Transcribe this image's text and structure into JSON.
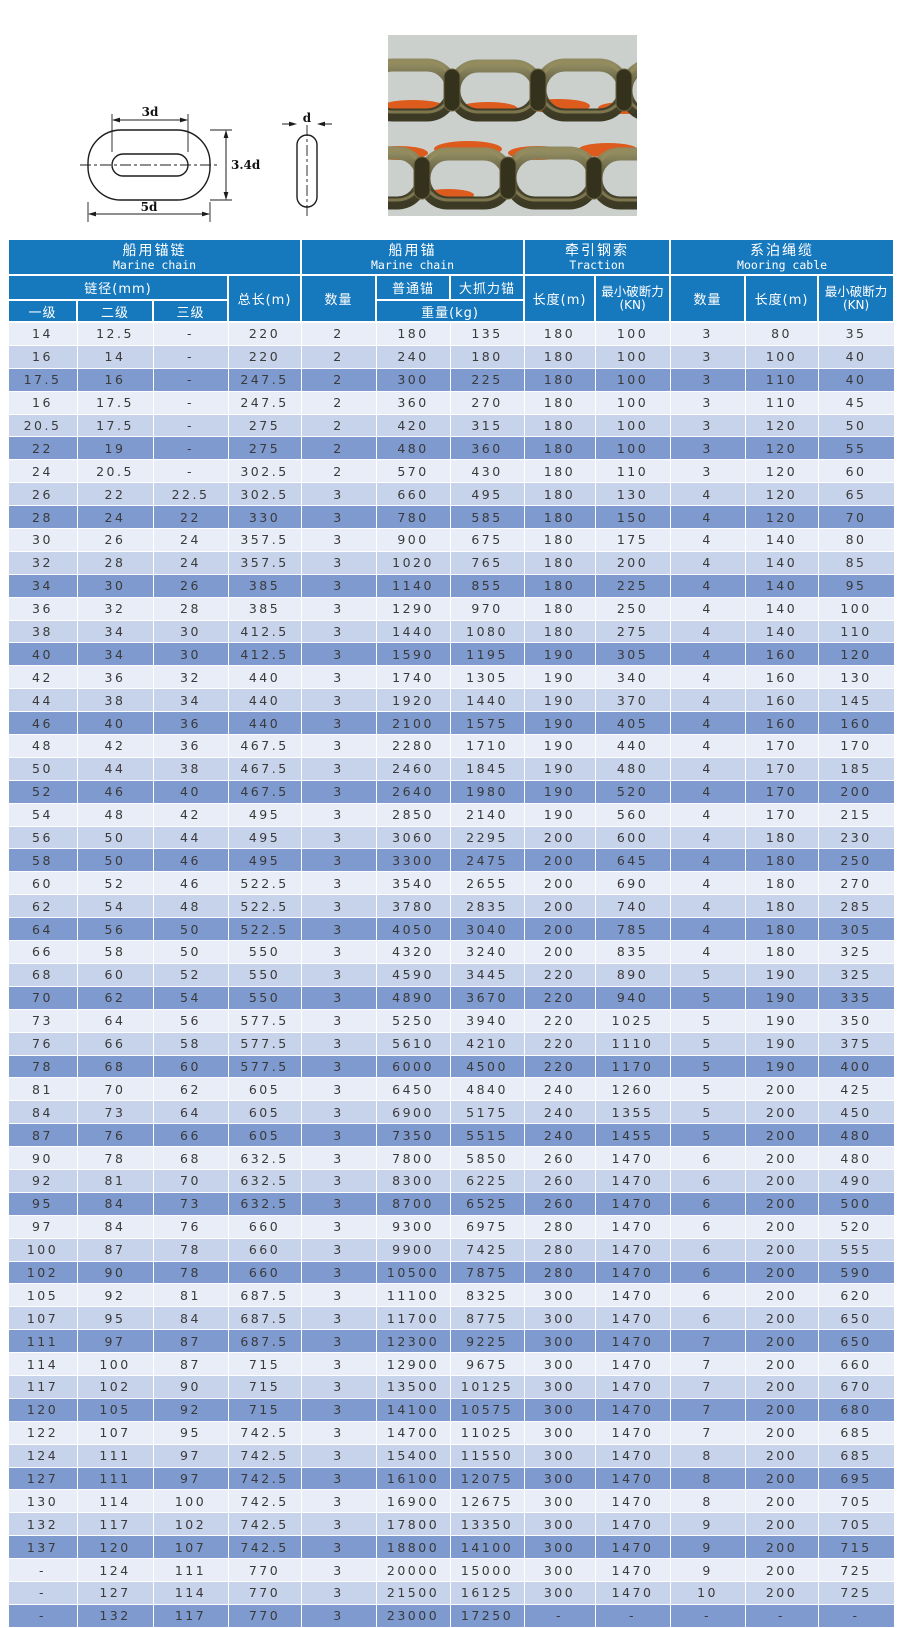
{
  "colors": {
    "header_blue": "#1678BD",
    "row_light": "#E9EDF7",
    "row_medium": "#C7D3EA",
    "row_dark": "#7E9ACF",
    "grid_white": "#FFFFFF",
    "body_text": "#3A3A3A",
    "photo_bg": "#CBD0CD",
    "photo_orange": "#DD5B1C",
    "photo_metal_light": "#978D5E",
    "photo_metal_dark": "#3C3A24"
  },
  "diagram": {
    "top_width": "3d",
    "height": "3.4d",
    "bottom_width": "5d",
    "bar_diameter": "d"
  },
  "table": {
    "groups": [
      {
        "zh": "船用锚链",
        "en": "Marine chain"
      },
      {
        "zh": "船用锚",
        "en": "Marine chain"
      },
      {
        "zh": "牵引钢索",
        "en": "Traction"
      },
      {
        "zh": "系泊绳缆",
        "en": "Mooring cable"
      }
    ],
    "header": {
      "chain_diameter": "链径(mm)",
      "grade1": "一级",
      "grade2": "二级",
      "grade3": "三级",
      "total_length": "总长(m)",
      "anchor_qty": "数量",
      "ordinary_anchor": "普通锚",
      "high_holding_anchor": "大抓力锚",
      "weight": "重量(kg)",
      "traction_length": "长度(m)",
      "traction_break": "最小破断力",
      "traction_break_unit": "(KN)",
      "mooring_qty": "数量",
      "mooring_length": "长度(m)",
      "mooring_break": "最小破断力",
      "mooring_break_unit": "(KN)"
    },
    "rows": [
      [
        "14",
        "12.5",
        "-",
        "220",
        "2",
        "180",
        "135",
        "180",
        "100",
        "3",
        "80",
        "35"
      ],
      [
        "16",
        "14",
        "-",
        "220",
        "2",
        "240",
        "180",
        "180",
        "100",
        "3",
        "100",
        "40"
      ],
      [
        "17.5",
        "16",
        "-",
        "247.5",
        "2",
        "300",
        "225",
        "180",
        "100",
        "3",
        "110",
        "40"
      ],
      [
        "16",
        "17.5",
        "-",
        "247.5",
        "2",
        "360",
        "270",
        "180",
        "100",
        "3",
        "110",
        "45"
      ],
      [
        "20.5",
        "17.5",
        "-",
        "275",
        "2",
        "420",
        "315",
        "180",
        "100",
        "3",
        "120",
        "50"
      ],
      [
        "22",
        "19",
        "-",
        "275",
        "2",
        "480",
        "360",
        "180",
        "100",
        "3",
        "120",
        "55"
      ],
      [
        "24",
        "20.5",
        "-",
        "302.5",
        "2",
        "570",
        "430",
        "180",
        "110",
        "3",
        "120",
        "60"
      ],
      [
        "26",
        "22",
        "22.5",
        "302.5",
        "3",
        "660",
        "495",
        "180",
        "130",
        "4",
        "120",
        "65"
      ],
      [
        "28",
        "24",
        "22",
        "330",
        "3",
        "780",
        "585",
        "180",
        "150",
        "4",
        "120",
        "70"
      ],
      [
        "30",
        "26",
        "24",
        "357.5",
        "3",
        "900",
        "675",
        "180",
        "175",
        "4",
        "140",
        "80"
      ],
      [
        "32",
        "28",
        "24",
        "357.5",
        "3",
        "1020",
        "765",
        "180",
        "200",
        "4",
        "140",
        "85"
      ],
      [
        "34",
        "30",
        "26",
        "385",
        "3",
        "1140",
        "855",
        "180",
        "225",
        "4",
        "140",
        "95"
      ],
      [
        "36",
        "32",
        "28",
        "385",
        "3",
        "1290",
        "970",
        "180",
        "250",
        "4",
        "140",
        "100"
      ],
      [
        "38",
        "34",
        "30",
        "412.5",
        "3",
        "1440",
        "1080",
        "180",
        "275",
        "4",
        "140",
        "110"
      ],
      [
        "40",
        "34",
        "30",
        "412.5",
        "3",
        "1590",
        "1195",
        "190",
        "305",
        "4",
        "160",
        "120"
      ],
      [
        "42",
        "36",
        "32",
        "440",
        "3",
        "1740",
        "1305",
        "190",
        "340",
        "4",
        "160",
        "130"
      ],
      [
        "44",
        "38",
        "34",
        "440",
        "3",
        "1920",
        "1440",
        "190",
        "370",
        "4",
        "160",
        "145"
      ],
      [
        "46",
        "40",
        "36",
        "440",
        "3",
        "2100",
        "1575",
        "190",
        "405",
        "4",
        "160",
        "160"
      ],
      [
        "48",
        "42",
        "36",
        "467.5",
        "3",
        "2280",
        "1710",
        "190",
        "440",
        "4",
        "170",
        "170"
      ],
      [
        "50",
        "44",
        "38",
        "467.5",
        "3",
        "2460",
        "1845",
        "190",
        "480",
        "4",
        "170",
        "185"
      ],
      [
        "52",
        "46",
        "40",
        "467.5",
        "3",
        "2640",
        "1980",
        "190",
        "520",
        "4",
        "170",
        "200"
      ],
      [
        "54",
        "48",
        "42",
        "495",
        "3",
        "2850",
        "2140",
        "190",
        "560",
        "4",
        "170",
        "215"
      ],
      [
        "56",
        "50",
        "44",
        "495",
        "3",
        "3060",
        "2295",
        "200",
        "600",
        "4",
        "180",
        "230"
      ],
      [
        "58",
        "50",
        "46",
        "495",
        "3",
        "3300",
        "2475",
        "200",
        "645",
        "4",
        "180",
        "250"
      ],
      [
        "60",
        "52",
        "46",
        "522.5",
        "3",
        "3540",
        "2655",
        "200",
        "690",
        "4",
        "180",
        "270"
      ],
      [
        "62",
        "54",
        "48",
        "522.5",
        "3",
        "3780",
        "2835",
        "200",
        "740",
        "4",
        "180",
        "285"
      ],
      [
        "64",
        "56",
        "50",
        "522.5",
        "3",
        "4050",
        "3040",
        "200",
        "785",
        "4",
        "180",
        "305"
      ],
      [
        "66",
        "58",
        "50",
        "550",
        "3",
        "4320",
        "3240",
        "200",
        "835",
        "4",
        "180",
        "325"
      ],
      [
        "68",
        "60",
        "52",
        "550",
        "3",
        "4590",
        "3445",
        "220",
        "890",
        "5",
        "190",
        "325"
      ],
      [
        "70",
        "62",
        "54",
        "550",
        "3",
        "4890",
        "3670",
        "220",
        "940",
        "5",
        "190",
        "335"
      ],
      [
        "73",
        "64",
        "56",
        "577.5",
        "3",
        "5250",
        "3940",
        "220",
        "1025",
        "5",
        "190",
        "350"
      ],
      [
        "76",
        "66",
        "58",
        "577.5",
        "3",
        "5610",
        "4210",
        "220",
        "1110",
        "5",
        "190",
        "375"
      ],
      [
        "78",
        "68",
        "60",
        "577.5",
        "3",
        "6000",
        "4500",
        "220",
        "1170",
        "5",
        "190",
        "400"
      ],
      [
        "81",
        "70",
        "62",
        "605",
        "3",
        "6450",
        "4840",
        "240",
        "1260",
        "5",
        "200",
        "425"
      ],
      [
        "84",
        "73",
        "64",
        "605",
        "3",
        "6900",
        "5175",
        "240",
        "1355",
        "5",
        "200",
        "450"
      ],
      [
        "87",
        "76",
        "66",
        "605",
        "3",
        "7350",
        "5515",
        "240",
        "1455",
        "5",
        "200",
        "480"
      ],
      [
        "90",
        "78",
        "68",
        "632.5",
        "3",
        "7800",
        "5850",
        "260",
        "1470",
        "6",
        "200",
        "480"
      ],
      [
        "92",
        "81",
        "70",
        "632.5",
        "3",
        "8300",
        "6225",
        "260",
        "1470",
        "6",
        "200",
        "490"
      ],
      [
        "95",
        "84",
        "73",
        "632.5",
        "3",
        "8700",
        "6525",
        "260",
        "1470",
        "6",
        "200",
        "500"
      ],
      [
        "97",
        "84",
        "76",
        "660",
        "3",
        "9300",
        "6975",
        "280",
        "1470",
        "6",
        "200",
        "520"
      ],
      [
        "100",
        "87",
        "78",
        "660",
        "3",
        "9900",
        "7425",
        "280",
        "1470",
        "6",
        "200",
        "555"
      ],
      [
        "102",
        "90",
        "78",
        "660",
        "3",
        "10500",
        "7875",
        "280",
        "1470",
        "6",
        "200",
        "590"
      ],
      [
        "105",
        "92",
        "81",
        "687.5",
        "3",
        "11100",
        "8325",
        "300",
        "1470",
        "6",
        "200",
        "620"
      ],
      [
        "107",
        "95",
        "84",
        "687.5",
        "3",
        "11700",
        "8775",
        "300",
        "1470",
        "6",
        "200",
        "650"
      ],
      [
        "111",
        "97",
        "87",
        "687.5",
        "3",
        "12300",
        "9225",
        "300",
        "1470",
        "7",
        "200",
        "650"
      ],
      [
        "114",
        "100",
        "87",
        "715",
        "3",
        "12900",
        "9675",
        "300",
        "1470",
        "7",
        "200",
        "660"
      ],
      [
        "117",
        "102",
        "90",
        "715",
        "3",
        "13500",
        "10125",
        "300",
        "1470",
        "7",
        "200",
        "670"
      ],
      [
        "120",
        "105",
        "92",
        "715",
        "3",
        "14100",
        "10575",
        "300",
        "1470",
        "7",
        "200",
        "680"
      ],
      [
        "122",
        "107",
        "95",
        "742.5",
        "3",
        "14700",
        "11025",
        "300",
        "1470",
        "7",
        "200",
        "685"
      ],
      [
        "124",
        "111",
        "97",
        "742.5",
        "3",
        "15400",
        "11550",
        "300",
        "1470",
        "8",
        "200",
        "685"
      ],
      [
        "127",
        "111",
        "97",
        "742.5",
        "3",
        "16100",
        "12075",
        "300",
        "1470",
        "8",
        "200",
        "695"
      ],
      [
        "130",
        "114",
        "100",
        "742.5",
        "3",
        "16900",
        "12675",
        "300",
        "1470",
        "8",
        "200",
        "705"
      ],
      [
        "132",
        "117",
        "102",
        "742.5",
        "3",
        "17800",
        "13350",
        "300",
        "1470",
        "9",
        "200",
        "705"
      ],
      [
        "137",
        "120",
        "107",
        "742.5",
        "3",
        "18800",
        "14100",
        "300",
        "1470",
        "9",
        "200",
        "715"
      ],
      [
        "-",
        "124",
        "111",
        "770",
        "3",
        "20000",
        "15000",
        "300",
        "1470",
        "9",
        "200",
        "725"
      ],
      [
        "-",
        "127",
        "114",
        "770",
        "3",
        "21500",
        "16125",
        "300",
        "1470",
        "10",
        "200",
        "725"
      ],
      [
        "-",
        "132",
        "117",
        "770",
        "3",
        "23000",
        "17250",
        "-",
        "-",
        "-",
        "-",
        "-"
      ]
    ]
  }
}
